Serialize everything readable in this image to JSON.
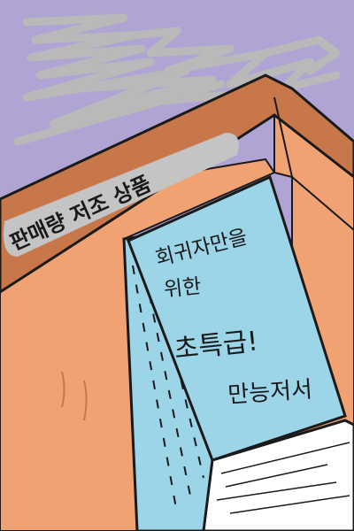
{
  "colors": {
    "sky": "#b0a4d4",
    "scribble": "#b9b9b9",
    "box_dark": "#c8774a",
    "box_light": "#f0a273",
    "label_bg": "#c4c4c4",
    "book_cover": "#9cd4e8",
    "pages": "#ffffff",
    "ink": "#1a1a1a"
  },
  "shelf_label": {
    "text": "판매량 저조 상품"
  },
  "book": {
    "title_lines": [
      "회귀자만을",
      "위한",
      "초특급!",
      "만능저서"
    ]
  }
}
